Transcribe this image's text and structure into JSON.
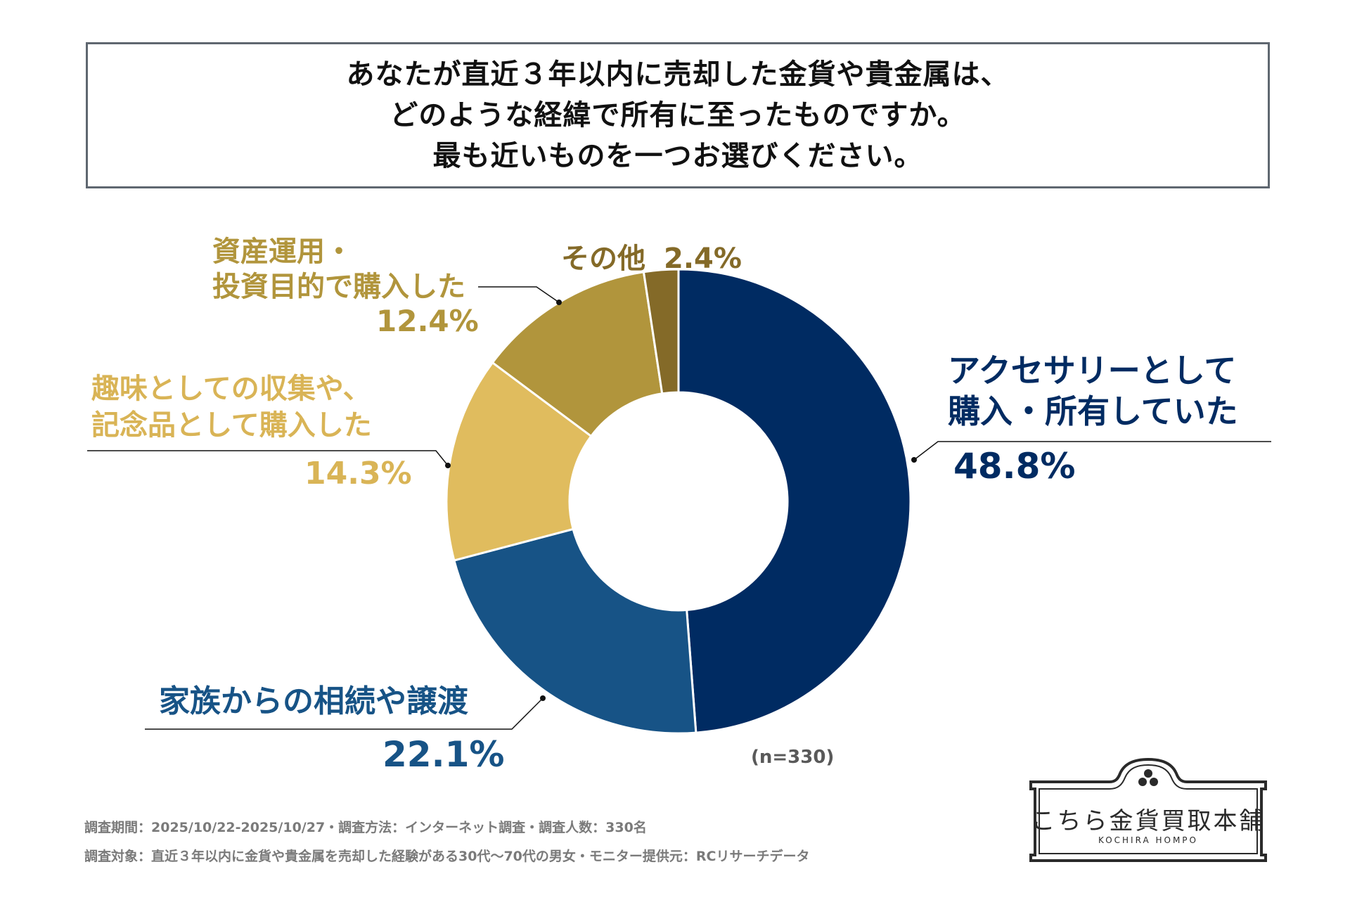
{
  "title_lines": [
    "あなたが直近３年以内に売却した金貨や貴金属は、",
    "どのような経緯で所有に至ったものですか。",
    "最も近いものを一つお選びください。"
  ],
  "chart_data": {
    "type": "pie",
    "donut": true,
    "unit": "%",
    "sample_note": "(n=330)",
    "slices": [
      {
        "lines": [
          "アクセサリーとして",
          "購入・所有していた"
        ],
        "value": 48.8,
        "value_label": "48.8%",
        "color": "#002b62"
      },
      {
        "lines": [
          "家族からの相続や譲渡"
        ],
        "value": 22.1,
        "value_label": "22.1%",
        "color": "#175386"
      },
      {
        "lines": [
          "趣味としての収集や、",
          "記念品として購入した"
        ],
        "value": 14.3,
        "value_label": "14.3%",
        "color": "#e0bc5e"
      },
      {
        "lines": [
          "資産運用・",
          "投資目的で購入した"
        ],
        "value": 12.4,
        "value_label": "12.4%",
        "color": "#b1953c"
      },
      {
        "lines": [
          "その他"
        ],
        "value": 2.4,
        "value_label": "2.4%",
        "color": "#846a28"
      }
    ]
  },
  "footnotes": [
    "調査期間：2025/10/22-2025/10/27・調査方法：インターネット調査・調査人数：330名",
    "調査対象：直近３年以内に金貨や貴金属を売却した経験がある30代～70代の男女・モニター提供元：RCリサーチデータ"
  ],
  "logo": {
    "name": "こちら金貨買取本舗",
    "sub": "KOCHIRA HOMPO"
  }
}
